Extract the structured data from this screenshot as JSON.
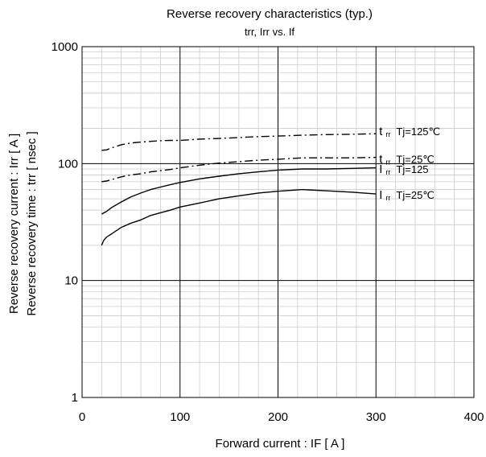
{
  "chart_data": {
    "type": "line",
    "title": "Reverse recovery characteristics (typ.)",
    "subtitle": "trr, Irr vs. If",
    "xlabel": "Forward current : IF [ A ]",
    "ylabel": [
      "Reverse recovery current : Irr [ A ]",
      "Reverse recovery time : trr [ nsec ]"
    ],
    "xlim": [
      0,
      400
    ],
    "ylim": [
      1,
      1000
    ],
    "yscale": "log",
    "grid": true,
    "x_ticks": [
      "0",
      "100",
      "200",
      "300",
      "400"
    ],
    "y_ticks": [
      "1",
      "10",
      "100",
      "1000"
    ],
    "series": [
      {
        "name": "t rr  Tj=125℃",
        "style": "dash-dot",
        "x": [
          20,
          25,
          30,
          40,
          50,
          60,
          70,
          80,
          90,
          100,
          120,
          140,
          160,
          180,
          200,
          225,
          250,
          275,
          300
        ],
        "y": [
          130,
          131,
          136,
          145,
          150,
          153,
          155,
          157,
          158,
          158,
          162,
          164,
          167,
          170,
          172,
          175,
          177,
          178,
          180
        ]
      },
      {
        "name": "t rr  Tj=25℃",
        "style": "dash-dot",
        "x": [
          20,
          25,
          30,
          40,
          50,
          60,
          70,
          80,
          90,
          100,
          120,
          140,
          160,
          180,
          200,
          225,
          250,
          275,
          300
        ],
        "y": [
          70,
          71,
          73,
          77,
          80,
          82,
          85,
          87,
          89,
          92,
          97,
          101,
          104,
          107,
          109,
          112,
          112,
          112,
          113
        ]
      },
      {
        "name": "I rr  Tj=125",
        "style": "solid",
        "x": [
          20,
          25,
          30,
          40,
          50,
          60,
          70,
          80,
          90,
          100,
          120,
          140,
          160,
          180,
          200,
          225,
          250,
          275,
          300
        ],
        "y": [
          37,
          39,
          42,
          47,
          52,
          56,
          60,
          63,
          66,
          69,
          74,
          78,
          82,
          85,
          88,
          90,
          90,
          91,
          92
        ]
      },
      {
        "name": "I rr  Tj=25℃",
        "style": "solid",
        "x": [
          20,
          22,
          25,
          30,
          40,
          50,
          60,
          70,
          80,
          90,
          100,
          120,
          140,
          160,
          180,
          200,
          225,
          250,
          275,
          300
        ],
        "y": [
          20,
          22,
          23.5,
          25,
          28.5,
          31,
          33,
          36,
          38,
          40,
          42.5,
          46,
          50,
          53,
          56,
          58,
          60,
          58.5,
          57,
          55
        ]
      }
    ],
    "series_labels": [
      {
        "main": "t",
        "sub": "rr",
        "rest": "Tj=125℃",
        "y": 190
      },
      {
        "main": "t",
        "sub": "rr",
        "rest": "Tj=25℃",
        "y": 110
      },
      {
        "main": "I",
        "sub": "rr",
        "rest": "Tj=125",
        "y": 90
      },
      {
        "main": "I",
        "sub": "rr",
        "rest": "Tj=25℃",
        "y": 54
      }
    ]
  }
}
